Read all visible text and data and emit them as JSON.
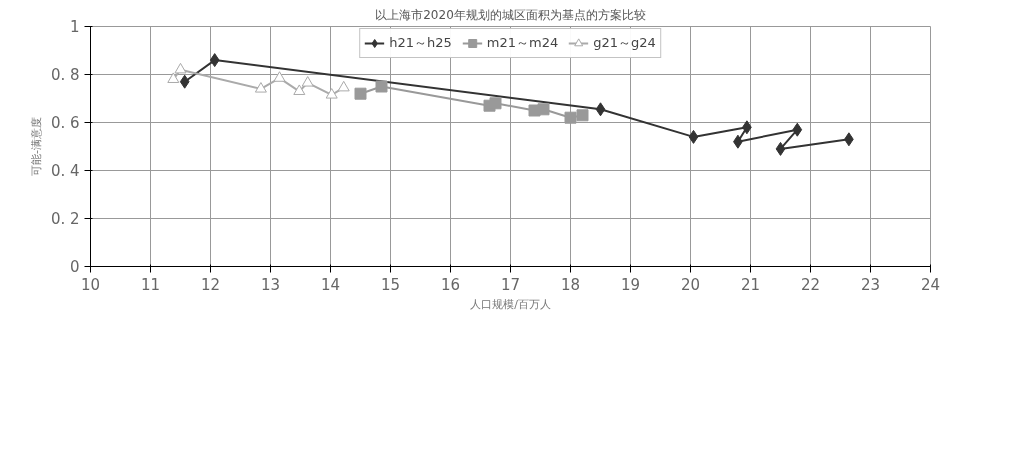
{
  "chart_data": {
    "type": "line",
    "title": "以上海市2020年规划的城区面积为基点的方案比较",
    "xlabel": "人口规模/百万人",
    "ylabel": "可能-满意度",
    "xlim": [
      10,
      24
    ],
    "xticks": [
      10,
      11,
      12,
      13,
      14,
      15,
      16,
      17,
      18,
      19,
      20,
      21,
      22,
      23,
      24
    ],
    "ylim": [
      0,
      1
    ],
    "yticks": [
      {
        "value": 0,
        "label": "0"
      },
      {
        "value": 0.2,
        "label": "0. 2"
      },
      {
        "value": 0.4,
        "label": "0. 4"
      },
      {
        "value": 0.6,
        "label": "0. 6"
      },
      {
        "value": 0.8,
        "label": "0. 8"
      },
      {
        "value": 1,
        "label": "1"
      }
    ],
    "grid": true,
    "legend": "top",
    "series": [
      {
        "name": "h21～h25",
        "color": "#333333",
        "marker": "diamond",
        "x": [
          11.57,
          12.07,
          18.5,
          20.05,
          20.94,
          20.79,
          21.78,
          21.5,
          22.64
        ],
        "values": [
          0.77,
          0.86,
          0.655,
          0.54,
          0.58,
          0.52,
          0.57,
          0.49,
          0.53
        ]
      },
      {
        "name": "m21～m24",
        "color": "#999999",
        "marker": "square",
        "x": [
          14.5,
          14.85,
          16.65,
          16.75,
          17.4,
          17.55,
          18.0,
          18.2
        ],
        "values": [
          0.72,
          0.75,
          0.67,
          0.68,
          0.65,
          0.655,
          0.62,
          0.63
        ]
      },
      {
        "name": "g21～g24",
        "color": "#aaaaaa",
        "marker": "triangle",
        "x": [
          11.38,
          11.5,
          12.84,
          13.15,
          13.48,
          13.62,
          14.02,
          14.22
        ],
        "values": [
          0.78,
          0.82,
          0.74,
          0.785,
          0.73,
          0.765,
          0.715,
          0.745
        ]
      }
    ]
  }
}
